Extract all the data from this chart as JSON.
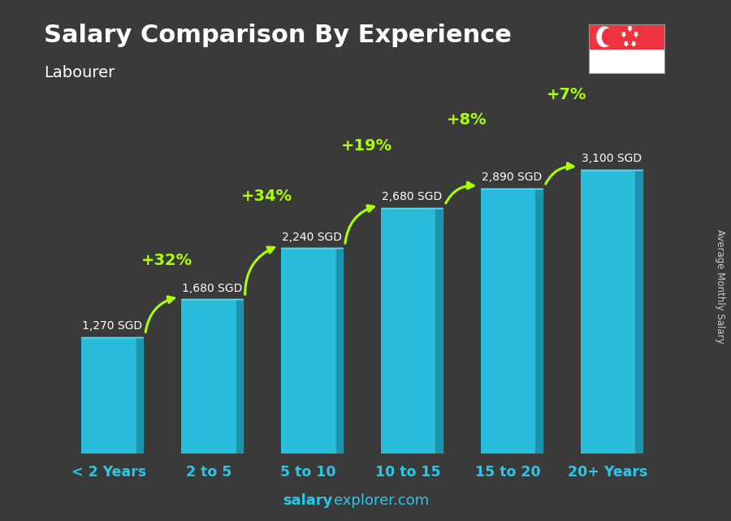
{
  "title": "Salary Comparison By Experience",
  "subtitle": "Labourer",
  "categories": [
    "< 2 Years",
    "2 to 5",
    "5 to 10",
    "10 to 15",
    "15 to 20",
    "20+ Years"
  ],
  "values": [
    1270,
    1680,
    2240,
    2680,
    2890,
    3100
  ],
  "salary_labels": [
    "1,270 SGD",
    "1,680 SGD",
    "2,240 SGD",
    "2,680 SGD",
    "2,890 SGD",
    "3,100 SGD"
  ],
  "pct_changes": [
    null,
    "+32%",
    "+34%",
    "+19%",
    "+8%",
    "+7%"
  ],
  "bar_face_color": "#29c8e8",
  "bar_side_color": "#1a9ab5",
  "bar_top_color": "#5de0f5",
  "bg_color": "#3a3a3a",
  "title_color": "#ffffff",
  "subtitle_color": "#ffffff",
  "salary_label_color": "#ffffff",
  "pct_color": "#aaff00",
  "xlabel_color": "#29c8e8",
  "footer_salary": "salary",
  "footer_rest": "explorer.com",
  "side_label": "Average Monthly Salary",
  "ylim_max": 3700,
  "bar_width": 0.55,
  "bar_depth": 0.07
}
